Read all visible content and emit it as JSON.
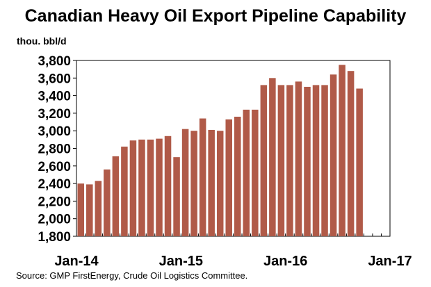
{
  "chart_data": {
    "type": "bar",
    "title": "Canadian Heavy Oil Export Pipeline Capability",
    "ylabel": "thou. bbl/d",
    "ylim": [
      1800,
      3800
    ],
    "yticks": [
      1800,
      2000,
      2200,
      2400,
      2600,
      2800,
      3000,
      3200,
      3400,
      3600,
      3800
    ],
    "xtick_labels": [
      "Jan-14",
      "Jan-15",
      "Jan-16",
      "Jan-17"
    ],
    "x_start": "Jan-14",
    "x_end": "Jan-17",
    "grid": false,
    "bar_color": "#b05a48",
    "series": [
      {
        "values": [
          2400,
          2390,
          2430,
          2560,
          2710,
          2820,
          2890,
          2900,
          2900,
          2910,
          2940,
          2700,
          3020,
          3000,
          3140,
          3010,
          3000,
          3130,
          3160,
          3240,
          3240,
          3520,
          3600,
          3520,
          3520,
          3560,
          3500,
          3520,
          3520,
          3640,
          3750,
          3680,
          3480
        ]
      }
    ],
    "source": "Source:  GMP FirstEnergy, Crude Oil Logistics Committee."
  }
}
